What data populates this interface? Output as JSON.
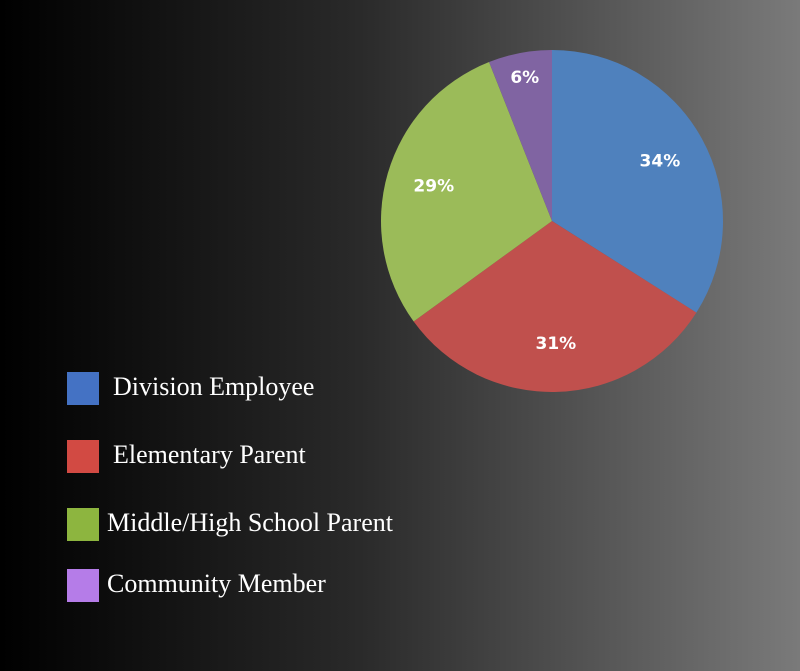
{
  "chart_data": {
    "type": "pie",
    "categories": [
      "Division Employee",
      "Elementary Parent",
      "Middle/High School Parent",
      "Community Member"
    ],
    "values": [
      34,
      31,
      29,
      6
    ],
    "value_labels": [
      "34%",
      "31%",
      "29%",
      "6%"
    ],
    "colors": [
      "#4f81bd",
      "#c0504d",
      "#9bbb59",
      "#8064a2"
    ],
    "legend_colors": [
      "#4472c4",
      "#d24a43",
      "#8db53f",
      "#b57ce8"
    ]
  }
}
